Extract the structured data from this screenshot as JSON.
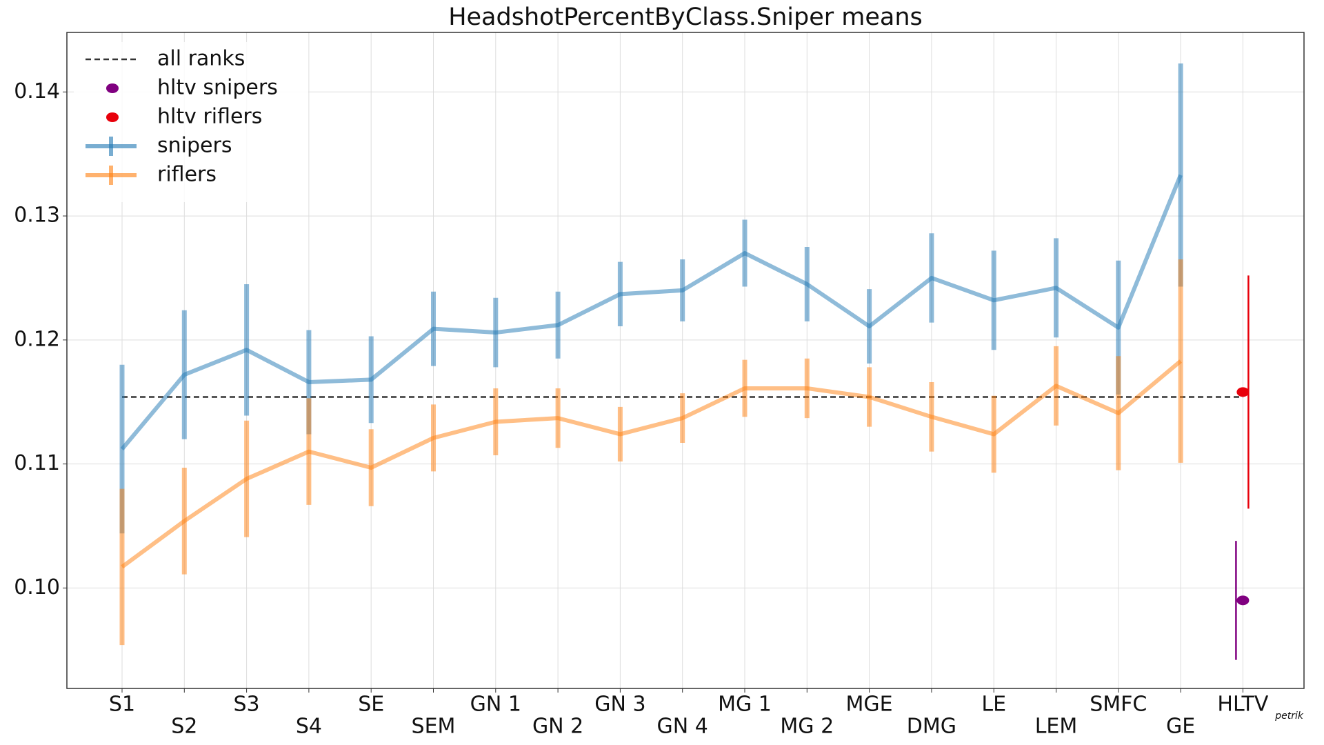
{
  "chart_data": {
    "type": "line",
    "title": "HeadshotPercentByClass.Sniper means",
    "signature": "petrik",
    "categories": [
      "S1",
      "S2",
      "S3",
      "S4",
      "SE",
      "SEM",
      "GN 1",
      "GN 2",
      "GN 3",
      "GN 4",
      "MG 1",
      "MG 2",
      "MGE",
      "DMG",
      "LE",
      "LEM",
      "SMFC",
      "GE",
      "HLTV"
    ],
    "ylim": [
      0.0919,
      0.1448
    ],
    "yticks": [
      {
        "value": 0.1,
        "label": "0.10"
      },
      0.11,
      0.12,
      0.13,
      0.14
    ],
    "grid": true,
    "legend": "upper left",
    "reference_line": {
      "name": "all ranks",
      "value": 0.1154,
      "color": "#333333"
    },
    "series": [
      {
        "name": "hltv snipers",
        "type": "scatter",
        "color": "#800080",
        "values": [
          null,
          null,
          null,
          null,
          null,
          null,
          null,
          null,
          null,
          null,
          null,
          null,
          null,
          null,
          null,
          null,
          null,
          null,
          0.099
        ],
        "errors": [
          null,
          null,
          null,
          null,
          null,
          null,
          null,
          null,
          null,
          null,
          null,
          null,
          null,
          null,
          null,
          null,
          null,
          null,
          0.0048
        ]
      },
      {
        "name": "hltv riflers",
        "type": "scatter",
        "color": "#e8000b",
        "values": [
          null,
          null,
          null,
          null,
          null,
          null,
          null,
          null,
          null,
          null,
          null,
          null,
          null,
          null,
          null,
          null,
          null,
          null,
          0.1158
        ],
        "errors": [
          null,
          null,
          null,
          null,
          null,
          null,
          null,
          null,
          null,
          null,
          null,
          null,
          null,
          null,
          null,
          null,
          null,
          null,
          0.0094
        ]
      },
      {
        "name": "snipers",
        "type": "line",
        "color": "#1f77b4",
        "values": [
          0.1112,
          0.1172,
          0.1192,
          0.1166,
          0.1168,
          0.1209,
          0.1206,
          0.1212,
          0.1237,
          0.124,
          0.127,
          0.1245,
          0.1211,
          0.125,
          0.1232,
          0.1242,
          0.121,
          0.1333,
          null
        ],
        "errors": [
          0.0068,
          0.0052,
          0.0053,
          0.0042,
          0.0035,
          0.003,
          0.0028,
          0.0027,
          0.0026,
          0.0025,
          0.0027,
          0.003,
          0.003,
          0.0036,
          0.004,
          0.004,
          0.0054,
          0.009,
          null
        ]
      },
      {
        "name": "riflers",
        "type": "line",
        "color": "#ff7f0e",
        "values": [
          0.1017,
          0.1054,
          0.1088,
          0.111,
          0.1097,
          0.1121,
          0.1134,
          0.1137,
          0.1124,
          0.1137,
          0.1161,
          0.1161,
          0.1154,
          0.1138,
          0.1124,
          0.1163,
          0.1141,
          0.1183,
          null
        ],
        "errors": [
          0.0063,
          0.0043,
          0.0047,
          0.0043,
          0.0031,
          0.0027,
          0.0027,
          0.0024,
          0.0022,
          0.002,
          0.0023,
          0.0024,
          0.0024,
          0.0028,
          0.0031,
          0.0032,
          0.0046,
          0.0082,
          null
        ]
      }
    ]
  }
}
